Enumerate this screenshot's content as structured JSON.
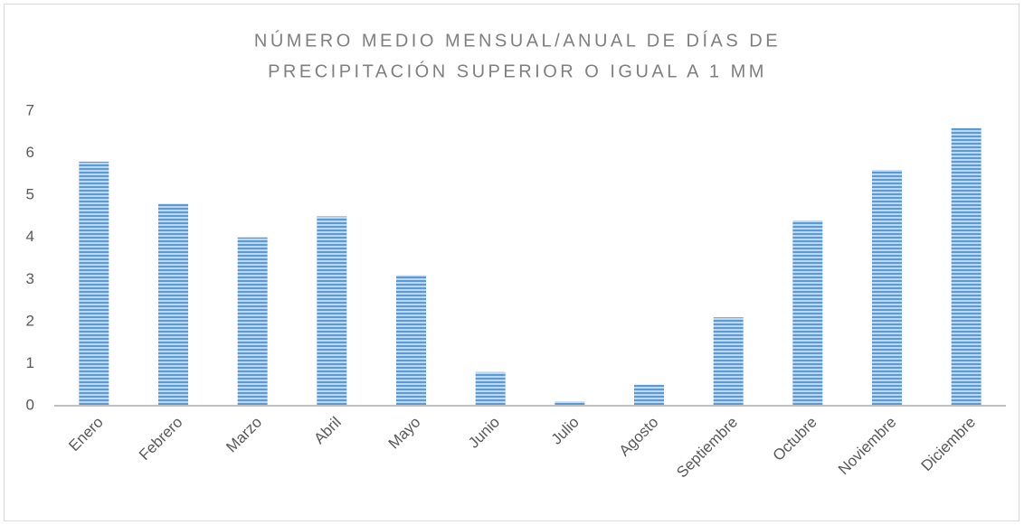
{
  "chart_data": {
    "type": "bar",
    "title": [
      "NÚMERO MEDIO MENSUAL/ANUAL DE DÍAS DE",
      "PRECIPITACIÓN SUPERIOR O IGUAL A 1 MM"
    ],
    "categories": [
      "Enero",
      "Febrero",
      "Marzo",
      "Abril",
      "Mayo",
      "Junio",
      "Julio",
      "Agosto",
      "Septiembre",
      "Octubre",
      "Noviembre",
      "Diciembre"
    ],
    "values": [
      5.8,
      4.8,
      4.0,
      4.5,
      3.1,
      0.8,
      0.1,
      0.5,
      2.1,
      4.4,
      5.6,
      6.6
    ],
    "color": "#5b9bd5",
    "ylim": [
      0,
      7
    ],
    "yticks": [
      0,
      1,
      2,
      3,
      4,
      5,
      6,
      7
    ],
    "grid": false
  }
}
